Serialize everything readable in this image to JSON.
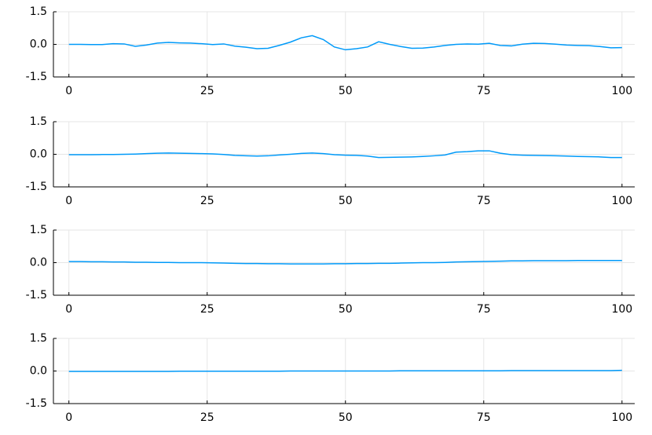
{
  "chart_data": [
    {
      "type": "line",
      "x": [
        0,
        2,
        4,
        6,
        8,
        10,
        12,
        14,
        16,
        18,
        20,
        22,
        24,
        26,
        28,
        30,
        32,
        34,
        36,
        38,
        40,
        42,
        44,
        46,
        48,
        50,
        52,
        54,
        56,
        58,
        60,
        62,
        64,
        66,
        68,
        70,
        72,
        74,
        76,
        78,
        80,
        82,
        84,
        86,
        88,
        90,
        92,
        94,
        96,
        98,
        100
      ],
      "series": [
        {
          "color": "#009af9",
          "values": [
            0,
            0,
            -0.01,
            -0.01,
            0.03,
            0.02,
            -0.09,
            -0.03,
            0.06,
            0.09,
            0.07,
            0.06,
            0.03,
            -0.01,
            0.02,
            -0.08,
            -0.13,
            -0.2,
            -0.18,
            -0.05,
            0.1,
            0.3,
            0.4,
            0.22,
            -0.12,
            -0.25,
            -0.2,
            -0.12,
            0.12,
            0,
            -0.1,
            -0.18,
            -0.17,
            -0.12,
            -0.05,
            0,
            0.02,
            0.01,
            0.05,
            -0.05,
            -0.07,
            0.01,
            0.05,
            0.04,
            0.01,
            -0.03,
            -0.05,
            -0.06,
            -0.1,
            -0.16,
            -0.15
          ]
        }
      ],
      "xlim": [
        -2.8,
        102.3
      ],
      "xticks": [
        0,
        25,
        50,
        75,
        100
      ],
      "ylim": [
        -1.5,
        1.5
      ],
      "yticks": [
        1.5,
        {
          "value": 0,
          "label": "0.0"
        },
        -1.5
      ],
      "grid": true
    },
    {
      "type": "line",
      "x": [
        0,
        2,
        4,
        6,
        8,
        10,
        12,
        14,
        16,
        18,
        20,
        22,
        24,
        26,
        28,
        30,
        32,
        34,
        36,
        38,
        40,
        42,
        44,
        46,
        48,
        50,
        52,
        54,
        56,
        58,
        60,
        62,
        64,
        66,
        68,
        70,
        72,
        74,
        76,
        78,
        80,
        82,
        84,
        86,
        88,
        90,
        92,
        94,
        96,
        98,
        100
      ],
      "series": [
        {
          "color": "#009af9",
          "values": [
            -0.02,
            -0.02,
            -0.02,
            -0.01,
            -0.01,
            0,
            0.01,
            0.03,
            0.05,
            0.06,
            0.05,
            0.04,
            0.03,
            0.02,
            -0.01,
            -0.05,
            -0.07,
            -0.08,
            -0.07,
            -0.03,
            0,
            0.04,
            0.06,
            0.03,
            -0.02,
            -0.04,
            -0.05,
            -0.08,
            -0.15,
            -0.14,
            -0.13,
            -0.12,
            -0.1,
            -0.07,
            -0.03,
            0.1,
            0.12,
            0.16,
            0.16,
            0.05,
            -0.02,
            -0.04,
            -0.05,
            -0.06,
            -0.07,
            -0.08,
            -0.1,
            -0.11,
            -0.12,
            -0.15,
            -0.15
          ]
        }
      ],
      "xlim": [
        -2.8,
        102.3
      ],
      "xticks": [
        0,
        25,
        50,
        75,
        100
      ],
      "ylim": [
        -1.5,
        1.5
      ],
      "yticks": [
        1.5,
        {
          "value": 0,
          "label": "0.0"
        },
        -1.5
      ],
      "grid": true
    },
    {
      "type": "line",
      "x": [
        0,
        2,
        4,
        6,
        8,
        10,
        12,
        14,
        16,
        18,
        20,
        22,
        24,
        26,
        28,
        30,
        32,
        34,
        36,
        38,
        40,
        42,
        44,
        46,
        48,
        50,
        52,
        54,
        56,
        58,
        60,
        62,
        64,
        66,
        68,
        70,
        72,
        74,
        76,
        78,
        80,
        82,
        84,
        86,
        88,
        90,
        92,
        94,
        96,
        98,
        100
      ],
      "series": [
        {
          "color": "#009af9",
          "values": [
            0.05,
            0.05,
            0.04,
            0.04,
            0.03,
            0.03,
            0.02,
            0.02,
            0.01,
            0.01,
            0,
            0,
            0,
            -0.01,
            -0.02,
            -0.03,
            -0.04,
            -0.04,
            -0.05,
            -0.05,
            -0.06,
            -0.06,
            -0.06,
            -0.06,
            -0.05,
            -0.05,
            -0.04,
            -0.04,
            -0.03,
            -0.03,
            -0.02,
            -0.01,
            0,
            0,
            0.01,
            0.03,
            0.04,
            0.05,
            0.06,
            0.07,
            0.08,
            0.08,
            0.09,
            0.09,
            0.09,
            0.09,
            0.1,
            0.1,
            0.1,
            0.1,
            0.1
          ]
        }
      ],
      "xlim": [
        -2.8,
        102.3
      ],
      "xticks": [
        0,
        25,
        50,
        75,
        100
      ],
      "ylim": [
        -1.5,
        1.5
      ],
      "yticks": [
        1.5,
        {
          "value": 0,
          "label": "0.0"
        },
        -1.5
      ],
      "grid": true
    },
    {
      "type": "line",
      "x": [
        0,
        2,
        4,
        6,
        8,
        10,
        12,
        14,
        16,
        18,
        20,
        22,
        24,
        26,
        28,
        30,
        32,
        34,
        36,
        38,
        40,
        42,
        44,
        46,
        48,
        50,
        52,
        54,
        56,
        58,
        60,
        62,
        64,
        66,
        68,
        70,
        72,
        74,
        76,
        78,
        80,
        82,
        84,
        86,
        88,
        90,
        92,
        94,
        96,
        98,
        100
      ],
      "series": [
        {
          "color": "#009af9",
          "values": [
            -0.02,
            -0.02,
            -0.02,
            -0.02,
            -0.02,
            -0.02,
            -0.02,
            -0.02,
            -0.02,
            -0.02,
            -0.01,
            -0.01,
            -0.01,
            -0.01,
            -0.01,
            -0.01,
            -0.01,
            -0.01,
            -0.01,
            -0.01,
            0,
            0,
            0,
            0,
            0,
            0,
            0,
            0,
            0,
            0,
            0.01,
            0.01,
            0.01,
            0.01,
            0.01,
            0.01,
            0.01,
            0.01,
            0.01,
            0.01,
            0.02,
            0.02,
            0.02,
            0.02,
            0.02,
            0.02,
            0.02,
            0.02,
            0.02,
            0.02,
            0.03
          ]
        }
      ],
      "xlim": [
        -2.8,
        102.3
      ],
      "xticks": [
        0,
        25,
        50,
        75,
        100
      ],
      "ylim": [
        -1.5,
        1.5
      ],
      "yticks": [
        1.5,
        {
          "value": 0,
          "label": "0.0"
        },
        -1.5
      ],
      "grid": true
    }
  ]
}
